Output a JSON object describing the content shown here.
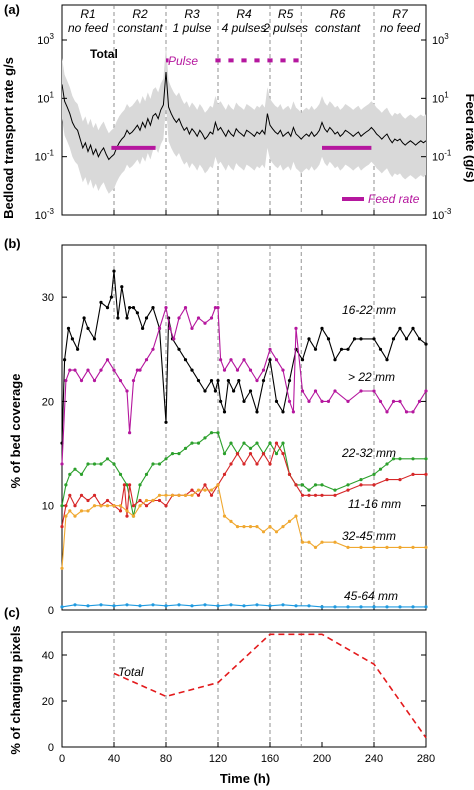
{
  "chart_data": [
    {
      "type": "line",
      "panel": "(a)",
      "ylabel": "Bedload transport rate g/s",
      "y2label": "Feed rate (g/s)",
      "y_scale": "log",
      "ylim": [
        0.001,
        1000
      ],
      "y_ticks": [
        "10",
        "10",
        "10",
        "10"
      ],
      "y_tick_exponents": [
        "-3",
        "-1",
        "1",
        "3"
      ],
      "xlim": [
        0,
        280
      ],
      "runs": [
        {
          "name": "R1",
          "desc": "no feed",
          "start": 0,
          "end": 40
        },
        {
          "name": "R2",
          "desc": "constant",
          "start": 40,
          "end": 80
        },
        {
          "name": "R3",
          "desc": "1 pulse",
          "start": 80,
          "end": 120
        },
        {
          "name": "R4",
          "desc": "4 pulses",
          "start": 120,
          "end": 160
        },
        {
          "name": "R5",
          "desc": "2 pulses",
          "start": 160,
          "end": 184
        },
        {
          "name": "R6",
          "desc": "constant",
          "start": 184,
          "end": 240
        },
        {
          "name": "R7",
          "desc": "no feed",
          "start": 240,
          "end": 280
        }
      ],
      "run_boundaries": [
        40,
        80,
        120,
        160,
        184,
        240
      ],
      "annotations": {
        "total": "Total",
        "pulse": "Pulse",
        "feed_rate": "Feed rate"
      },
      "series": [
        {
          "name": "Total",
          "color": "#000000",
          "x": [
            0,
            2,
            4,
            6,
            8,
            10,
            12,
            14,
            16,
            18,
            20,
            22,
            24,
            26,
            28,
            30,
            32,
            34,
            36,
            38,
            40,
            42,
            44,
            46,
            48,
            50,
            52,
            54,
            56,
            58,
            60,
            62,
            64,
            66,
            68,
            70,
            72,
            74,
            76,
            78,
            80,
            82,
            84,
            86,
            88,
            90,
            92,
            94,
            96,
            98,
            100,
            102,
            104,
            106,
            108,
            110,
            112,
            114,
            116,
            118,
            120,
            122,
            124,
            126,
            128,
            130,
            132,
            134,
            136,
            138,
            140,
            142,
            144,
            146,
            148,
            150,
            152,
            154,
            156,
            158,
            160,
            162,
            164,
            166,
            168,
            170,
            172,
            174,
            176,
            178,
            180,
            182,
            184,
            186,
            188,
            190,
            192,
            194,
            196,
            198,
            200,
            202,
            204,
            206,
            208,
            210,
            212,
            214,
            216,
            218,
            220,
            222,
            224,
            226,
            228,
            230,
            232,
            234,
            236,
            238,
            240,
            242,
            244,
            246,
            248,
            250,
            252,
            254,
            256,
            258,
            260,
            262,
            264,
            266,
            268,
            270,
            272,
            274,
            276,
            278,
            280
          ],
          "values": [
            30,
            8,
            5,
            3,
            1.5,
            1,
            0.8,
            0.4,
            0.2,
            0.3,
            0.15,
            0.25,
            0.12,
            0.18,
            0.1,
            0.15,
            0.2,
            0.12,
            0.08,
            0.1,
            0.12,
            0.2,
            0.3,
            0.4,
            0.5,
            0.8,
            0.6,
            0.7,
            0.9,
            1.2,
            0.8,
            1.5,
            1.0,
            2.0,
            1.2,
            2.5,
            3.0,
            2.0,
            4.0,
            6.0,
            80,
            5.0,
            3.0,
            2.0,
            1.5,
            2.0,
            1.2,
            0.8,
            1.0,
            0.6,
            0.9,
            0.7,
            0.5,
            0.8,
            0.6,
            0.4,
            0.5,
            0.7,
            0.6,
            1.5,
            0.8,
            1.0,
            0.7,
            0.5,
            0.8,
            0.6,
            0.5,
            0.9,
            0.7,
            0.6,
            0.5,
            0.8,
            0.7,
            0.6,
            0.5,
            0.7,
            0.6,
            0.8,
            0.6,
            3.0,
            1.2,
            0.9,
            0.7,
            0.6,
            0.8,
            0.5,
            0.6,
            0.7,
            0.5,
            1.0,
            0.6,
            0.5,
            0.4,
            0.5,
            0.6,
            0.5,
            0.7,
            0.5,
            0.6,
            0.8,
            1.5,
            0.9,
            0.7,
            1.0,
            0.8,
            0.6,
            0.7,
            0.5,
            0.6,
            0.8,
            0.7,
            0.6,
            0.5,
            0.6,
            0.7,
            0.5,
            0.6,
            0.7,
            0.8,
            1.0,
            0.8,
            0.6,
            0.5,
            0.4,
            0.5,
            0.6,
            0.4,
            0.3,
            0.4,
            0.35,
            0.4,
            0.3,
            0.25,
            0.3,
            0.35,
            0.3,
            0.25,
            0.3,
            0.35,
            0.3,
            0.35
          ]
        },
        {
          "name": "Feed rate",
          "color": "#b5179e",
          "segments": [
            {
              "x": [
                38,
                72
              ],
              "y": 0.2
            },
            {
              "x": [
                80,
                82
              ],
              "y": 200
            },
            {
              "x": [
                118,
                122
              ],
              "y": 200
            },
            {
              "x": [
                128,
                132
              ],
              "y": 200
            },
            {
              "x": [
                138,
                142
              ],
              "y": 200
            },
            {
              "x": [
                148,
                152
              ],
              "y": 200
            },
            {
              "x": [
                158,
                162
              ],
              "y": 200
            },
            {
              "x": [
                168,
                172
              ],
              "y": 200
            },
            {
              "x": [
                178,
                182
              ],
              "y": 200
            },
            {
              "x": [
                200,
                238
              ],
              "y": 0.2
            }
          ]
        }
      ]
    },
    {
      "type": "line",
      "panel": "(b)",
      "ylabel": "% of bed coverage",
      "ylim": [
        0,
        35
      ],
      "y_ticks": [
        0,
        10,
        20,
        30
      ],
      "xlim": [
        0,
        280
      ],
      "series": [
        {
          "name": "16-22 mm",
          "color": "#000000",
          "x": [
            0,
            2,
            5,
            8,
            12,
            17,
            20,
            25,
            30,
            35,
            38,
            40,
            43,
            46,
            50,
            52,
            55,
            58,
            62,
            65,
            70,
            75,
            80,
            82,
            85,
            90,
            95,
            100,
            105,
            110,
            115,
            118,
            120,
            122,
            125,
            128,
            132,
            136,
            140,
            145,
            150,
            155,
            160,
            165,
            170,
            175,
            180,
            185,
            190,
            195,
            200,
            205,
            210,
            215,
            220,
            225,
            230,
            240,
            245,
            250,
            255,
            260,
            265,
            270,
            275,
            280
          ],
          "values": [
            16,
            24,
            27,
            26,
            25,
            28,
            27,
            26,
            29.5,
            29,
            30,
            32.5,
            28,
            31,
            28,
            29,
            29,
            28.5,
            27,
            28,
            29,
            27,
            18,
            28,
            26,
            25,
            24,
            23,
            22,
            21,
            22,
            21,
            22,
            20,
            19,
            22,
            21,
            22,
            20,
            21,
            19,
            22,
            24,
            20,
            19,
            22,
            25,
            24,
            26,
            25,
            27,
            26,
            24,
            25,
            25,
            26,
            26,
            26,
            25,
            24,
            26,
            27,
            26,
            27,
            26,
            25.5
          ]
        },
        {
          "name": "> 22 mm",
          "color": "#b5179e",
          "x": [
            0,
            3,
            6,
            10,
            15,
            20,
            25,
            30,
            35,
            40,
            45,
            50,
            52,
            55,
            58,
            60,
            65,
            70,
            75,
            80,
            83,
            86,
            90,
            95,
            100,
            105,
            110,
            115,
            118,
            120,
            122,
            125,
            130,
            135,
            140,
            145,
            150,
            155,
            160,
            165,
            170,
            175,
            178,
            180,
            185,
            190,
            195,
            200,
            205,
            210,
            220,
            230,
            240,
            245,
            250,
            255,
            260,
            265,
            270,
            275,
            280
          ],
          "values": [
            14,
            22,
            23,
            23,
            22,
            23,
            22,
            23,
            24,
            23,
            22,
            21,
            17,
            22,
            23,
            23,
            24,
            25,
            27,
            29,
            27,
            26,
            28,
            29,
            27,
            28,
            27.5,
            28,
            29,
            29,
            24,
            23,
            24,
            23,
            24,
            23,
            22,
            23,
            25,
            24,
            23,
            20,
            19,
            27,
            21,
            20,
            21,
            20,
            20,
            21,
            20,
            21,
            21,
            20,
            19,
            20,
            20,
            19,
            19,
            20,
            21
          ]
        },
        {
          "name": "22-32 mm",
          "color": "#2ca02c",
          "x": [
            0,
            3,
            6,
            10,
            15,
            20,
            25,
            30,
            35,
            40,
            45,
            50,
            55,
            60,
            65,
            70,
            75,
            80,
            85,
            90,
            95,
            100,
            105,
            110,
            115,
            120,
            125,
            130,
            135,
            140,
            145,
            150,
            155,
            160,
            165,
            170,
            175,
            180,
            185,
            190,
            195,
            200,
            210,
            220,
            230,
            240,
            245,
            250,
            255,
            260,
            270,
            280
          ],
          "values": [
            10,
            12,
            13,
            13.5,
            13,
            14,
            14,
            14,
            14.5,
            14,
            13,
            12,
            9,
            12,
            13,
            14,
            14,
            14.5,
            15,
            15,
            15.5,
            16,
            16,
            16.5,
            17,
            17,
            15,
            16,
            15,
            16,
            15.5,
            16,
            15,
            16,
            15,
            16,
            13,
            12,
            12,
            11.5,
            12,
            12,
            11.5,
            12,
            12.5,
            13,
            13.5,
            14,
            14.5,
            14.5,
            14.5,
            14.5
          ]
        },
        {
          "name": "11-16 mm",
          "color": "#d62728",
          "x": [
            0,
            3,
            6,
            10,
            15,
            20,
            25,
            30,
            35,
            40,
            45,
            48,
            50,
            52,
            55,
            60,
            65,
            70,
            75,
            80,
            85,
            90,
            95,
            100,
            105,
            110,
            115,
            120,
            125,
            130,
            135,
            140,
            145,
            150,
            155,
            160,
            165,
            170,
            175,
            180,
            185,
            190,
            195,
            200,
            210,
            220,
            230,
            240,
            250,
            260,
            270,
            280
          ],
          "values": [
            8,
            10,
            11,
            10,
            11,
            10.5,
            11,
            10,
            10.5,
            10,
            9.5,
            12,
            9,
            12,
            10,
            10.5,
            10,
            10.5,
            10.5,
            10,
            11,
            11,
            11,
            11.5,
            11,
            12,
            11,
            12,
            13,
            14,
            15,
            14,
            15,
            14,
            15,
            14,
            16,
            15,
            13,
            12,
            11,
            11,
            11,
            11,
            11,
            11.5,
            12,
            12,
            12.5,
            12.5,
            13,
            13
          ]
        },
        {
          "name": "32-45 mm",
          "color": "#f0a830",
          "x": [
            0,
            3,
            6,
            10,
            15,
            20,
            25,
            30,
            35,
            40,
            45,
            50,
            55,
            60,
            65,
            70,
            75,
            80,
            85,
            90,
            95,
            100,
            105,
            110,
            115,
            120,
            125,
            130,
            135,
            140,
            145,
            150,
            155,
            160,
            165,
            170,
            175,
            180,
            185,
            190,
            195,
            200,
            210,
            220,
            230,
            240,
            250,
            260,
            270,
            280
          ],
          "values": [
            4,
            9,
            9.5,
            9,
            9.5,
            9.5,
            10,
            10,
            10,
            10,
            10,
            9.5,
            9,
            10,
            10.5,
            10.5,
            11,
            11,
            11,
            11,
            11,
            11,
            11.5,
            11.5,
            11.5,
            12,
            9,
            8.5,
            8,
            8,
            8,
            8,
            7.5,
            8,
            7.5,
            8,
            8.5,
            9,
            6.5,
            6.5,
            6,
            6.5,
            6.5,
            6,
            6,
            6,
            6,
            6,
            6,
            6
          ]
        },
        {
          "name": "45-64 mm",
          "color": "#1f9ae0",
          "x": [
            0,
            10,
            20,
            30,
            40,
            50,
            60,
            70,
            80,
            90,
            100,
            110,
            120,
            130,
            140,
            150,
            160,
            170,
            180,
            190,
            200,
            210,
            220,
            230,
            240,
            250,
            260,
            270,
            280
          ],
          "values": [
            0.3,
            0.5,
            0.4,
            0.5,
            0.4,
            0.5,
            0.4,
            0.5,
            0.4,
            0.5,
            0.4,
            0.5,
            0.4,
            0.5,
            0.4,
            0.5,
            0.4,
            0.5,
            0.4,
            0.4,
            0.3,
            0.3,
            0.3,
            0.3,
            0.3,
            0.3,
            0.3,
            0.3,
            0.3
          ]
        }
      ]
    },
    {
      "type": "line",
      "panel": "(c)",
      "ylabel": "% of changing pixels",
      "xlabel": "Time (h)",
      "ylim": [
        0,
        50
      ],
      "y_ticks": [
        0,
        20,
        40
      ],
      "xlim": [
        0,
        280
      ],
      "x_ticks": [
        0,
        40,
        80,
        120,
        160,
        200,
        240,
        280
      ],
      "series": [
        {
          "name": "Total",
          "color": "#e31a1c",
          "x": [
            40,
            80,
            120,
            160,
            200,
            240,
            280
          ],
          "values": [
            32,
            22,
            28,
            49,
            49,
            36,
            4
          ]
        }
      ]
    }
  ]
}
